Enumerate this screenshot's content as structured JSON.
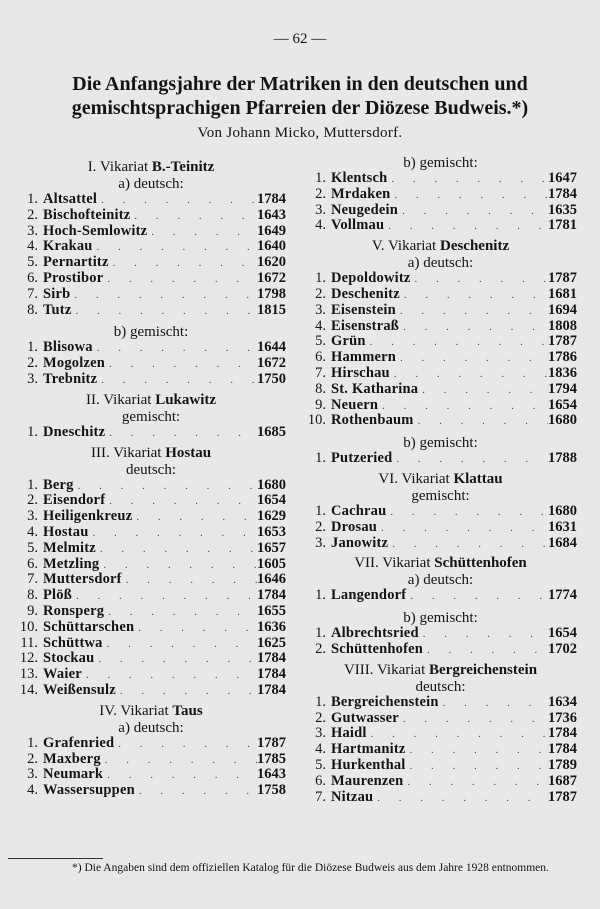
{
  "page_number": "— 62 —",
  "title": "Die Anfangsjahre der Matriken in den deutschen und gemischtsprachigen Pfarreien der Diözese Budweis.*)",
  "byline": "Von Johann Micko, Muttersdorf.",
  "columns": {
    "left": [
      {
        "type": "heading",
        "number": "I.",
        "word": "Vikariat",
        "name": "B.-Teinitz"
      },
      {
        "type": "sub",
        "text": "a) deutsch:"
      },
      {
        "type": "item",
        "num": "1.",
        "name": "Altsattel",
        "year": "1784"
      },
      {
        "type": "item",
        "num": "2.",
        "name": "Bischofteinitz",
        "year": "1643"
      },
      {
        "type": "item",
        "num": "3.",
        "name": "Hoch-Semlowitz",
        "year": "1649"
      },
      {
        "type": "item",
        "num": "4.",
        "name": "Krakau",
        "year": "1640"
      },
      {
        "type": "item",
        "num": "5.",
        "name": "Pernartitz",
        "year": "1620"
      },
      {
        "type": "item",
        "num": "6.",
        "name": "Prostibor",
        "year": "1672"
      },
      {
        "type": "item",
        "num": "7.",
        "name": "Sirb",
        "year": "1798"
      },
      {
        "type": "item",
        "num": "8.",
        "name": "Tutz",
        "year": "1815"
      },
      {
        "type": "sub",
        "text": "b) gemischt:",
        "gap": true
      },
      {
        "type": "item",
        "num": "1.",
        "name": "Blisowa",
        "year": "1644"
      },
      {
        "type": "item",
        "num": "2.",
        "name": "Mogolzen",
        "year": "1672"
      },
      {
        "type": "item",
        "num": "3.",
        "name": "Trebnitz",
        "year": "1750"
      },
      {
        "type": "heading",
        "number": "II.",
        "word": "Vikariat",
        "name": "Lukawitz"
      },
      {
        "type": "sub",
        "text": "gemischt:"
      },
      {
        "type": "item",
        "num": "1.",
        "name": "Dneschitz",
        "year": "1685"
      },
      {
        "type": "heading",
        "number": "III.",
        "word": "Vikariat",
        "name": "Hostau"
      },
      {
        "type": "sub",
        "text": "deutsch:"
      },
      {
        "type": "item",
        "num": "1.",
        "name": "Berg",
        "year": "1680"
      },
      {
        "type": "item",
        "num": "2.",
        "name": "Eisendorf",
        "year": "1654"
      },
      {
        "type": "item",
        "num": "3.",
        "name": "Heiligenkreuz",
        "year": "1629"
      },
      {
        "type": "item",
        "num": "4.",
        "name": "Hostau",
        "year": "1653"
      },
      {
        "type": "item",
        "num": "5.",
        "name": "Melmitz",
        "year": "1657"
      },
      {
        "type": "item",
        "num": "6.",
        "name": "Metzling",
        "year": "1605"
      },
      {
        "type": "item",
        "num": "7.",
        "name": "Muttersdorf",
        "year": "1646"
      },
      {
        "type": "item",
        "num": "8.",
        "name": "Plöß",
        "year": "1784"
      },
      {
        "type": "item",
        "num": "9.",
        "name": "Ronsperg",
        "year": "1655"
      },
      {
        "type": "item",
        "num": "10.",
        "name": "Schüttarschen",
        "year": "1636"
      },
      {
        "type": "item",
        "num": "11.",
        "name": "Schüttwa",
        "year": "1625"
      },
      {
        "type": "item",
        "num": "12.",
        "name": "Stockau",
        "year": "1784"
      },
      {
        "type": "item",
        "num": "13.",
        "name": "Waier",
        "year": "1784"
      },
      {
        "type": "item",
        "num": "14.",
        "name": "Weißensulz",
        "year": "1784"
      },
      {
        "type": "heading",
        "number": "IV.",
        "word": "Vikariat",
        "name": "Taus"
      },
      {
        "type": "sub",
        "text": "a) deutsch:"
      },
      {
        "type": "item",
        "num": "1.",
        "name": "Grafenried",
        "year": "1787"
      },
      {
        "type": "item",
        "num": "2.",
        "name": "Maxberg",
        "year": "1785"
      },
      {
        "type": "item",
        "num": "3.",
        "name": "Neumark",
        "year": "1643"
      },
      {
        "type": "item",
        "num": "4.",
        "name": "Wassersuppen",
        "year": "1758"
      }
    ],
    "right": [
      {
        "type": "sub",
        "text": "b) gemischt:"
      },
      {
        "type": "item",
        "num": "1.",
        "name": "Klentsch",
        "year": "1647"
      },
      {
        "type": "item",
        "num": "2.",
        "name": "Mrdaken",
        "year": "1784"
      },
      {
        "type": "item",
        "num": "3.",
        "name": "Neugedein",
        "year": "1635"
      },
      {
        "type": "item",
        "num": "4.",
        "name": "Vollmau",
        "year": "1781"
      },
      {
        "type": "heading",
        "number": "V.",
        "word": "Vikariat",
        "name": "Deschenitz"
      },
      {
        "type": "sub",
        "text": "a) deutsch:"
      },
      {
        "type": "item",
        "num": "1.",
        "name": "Depoldowitz",
        "year": "1787"
      },
      {
        "type": "item",
        "num": "2.",
        "name": "Deschenitz",
        "year": "1681"
      },
      {
        "type": "item",
        "num": "3.",
        "name": "Eisenstein",
        "year": "1694"
      },
      {
        "type": "item",
        "num": "4.",
        "name": "Eisenstraß",
        "year": "1808"
      },
      {
        "type": "item",
        "num": "5.",
        "name": "Grün",
        "year": "1787"
      },
      {
        "type": "item",
        "num": "6.",
        "name": "Hammern",
        "year": "1786"
      },
      {
        "type": "item",
        "num": "7.",
        "name": "Hirschau",
        "year": "1836"
      },
      {
        "type": "item",
        "num": "8.",
        "name": "St. Katharina",
        "year": "1794"
      },
      {
        "type": "item",
        "num": "9.",
        "name": "Neuern",
        "year": "1654"
      },
      {
        "type": "item",
        "num": "10.",
        "name": "Rothenbaum",
        "year": "1680"
      },
      {
        "type": "sub",
        "text": "b) gemischt:",
        "gap": true
      },
      {
        "type": "item",
        "num": "1.",
        "name": "Putzeried",
        "year": "1788"
      },
      {
        "type": "heading",
        "number": "VI.",
        "word": "Vikariat",
        "name": "Klattau"
      },
      {
        "type": "sub",
        "text": "gemischt:"
      },
      {
        "type": "item",
        "num": "1.",
        "name": "Cachrau",
        "year": "1680"
      },
      {
        "type": "item",
        "num": "2.",
        "name": "Drosau",
        "year": "1631"
      },
      {
        "type": "item",
        "num": "3.",
        "name": "Janowitz",
        "year": "1684"
      },
      {
        "type": "heading",
        "number": "VII.",
        "word": "Vikariat",
        "name": "Schüttenhofen"
      },
      {
        "type": "sub",
        "text": "a) deutsch:"
      },
      {
        "type": "item",
        "num": "1.",
        "name": "Langendorf",
        "year": "1774"
      },
      {
        "type": "sub",
        "text": "b) gemischt:",
        "gap": true
      },
      {
        "type": "item",
        "num": "1.",
        "name": "Albrechtsried",
        "year": "1654"
      },
      {
        "type": "item",
        "num": "2.",
        "name": "Schüttenhofen",
        "year": "1702"
      },
      {
        "type": "heading",
        "number": "VIII.",
        "word": "Vikariat",
        "name": "Bergreichenstein"
      },
      {
        "type": "sub",
        "text": "deutsch:"
      },
      {
        "type": "item",
        "num": "1.",
        "name": "Bergreichenstein",
        "year": "1634"
      },
      {
        "type": "item",
        "num": "2.",
        "name": "Gutwasser",
        "year": "1736"
      },
      {
        "type": "item",
        "num": "3.",
        "name": "Haidl",
        "year": "1784"
      },
      {
        "type": "item",
        "num": "4.",
        "name": "Hartmanitz",
        "year": "1784"
      },
      {
        "type": "item",
        "num": "5.",
        "name": "Hurkenthal",
        "year": "1789"
      },
      {
        "type": "item",
        "num": "6.",
        "name": "Maurenzen",
        "year": "1687"
      },
      {
        "type": "item",
        "num": "7.",
        "name": "Nitzau",
        "year": "1787"
      }
    ]
  },
  "footnote": "*) Die Angaben sind dem offiziellen Katalog für die Diözese Budweis aus dem Jahre 1928 entnommen."
}
